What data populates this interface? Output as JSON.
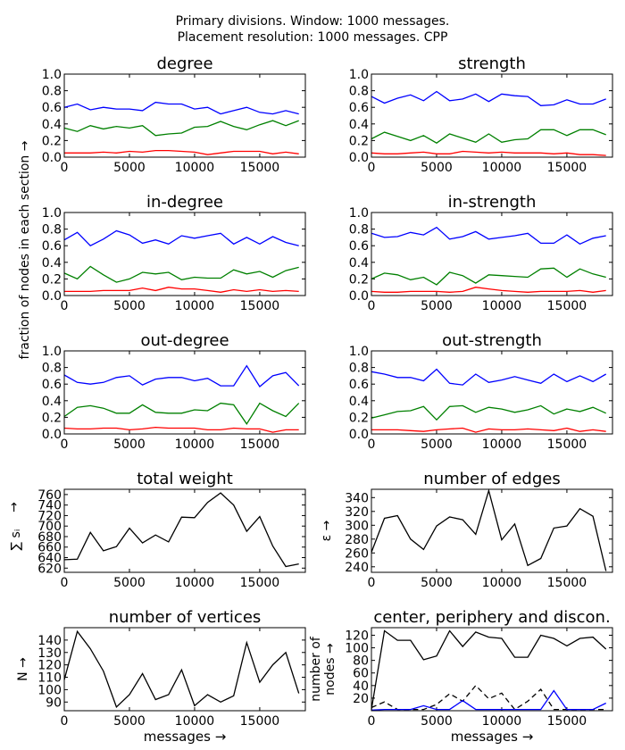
{
  "figure": {
    "suptitle_line1": "Primary divisions. Window: 1000 messages.",
    "suptitle_line2": "Placement resolution: 1000 messages. CPP",
    "fraction_ylabel": "fraction of nodes in each section  →"
  },
  "chart_data": [
    {
      "id": "degree",
      "type": "line",
      "title": "degree",
      "xlim": [
        0,
        18500
      ],
      "ylim": [
        0,
        1.0
      ],
      "xticks": [
        0,
        5000,
        10000,
        15000
      ],
      "yticks": [
        0.0,
        0.2,
        0.4,
        0.6,
        0.8,
        1.0
      ],
      "xtick_labels": [
        "0",
        "5000",
        "10000",
        "15000"
      ],
      "ytick_labels": [
        "0.0",
        "0.2",
        "0.4",
        "0.6",
        "0.8",
        "1.0"
      ],
      "x": [
        0,
        1000,
        2000,
        3000,
        4000,
        5000,
        6000,
        7000,
        8000,
        9000,
        10000,
        11000,
        12000,
        13000,
        14000,
        15000,
        16000,
        17000,
        18000
      ],
      "series": [
        {
          "color": "#0000ff",
          "values": [
            0.6,
            0.64,
            0.57,
            0.6,
            0.58,
            0.58,
            0.56,
            0.66,
            0.64,
            0.64,
            0.58,
            0.6,
            0.52,
            0.56,
            0.6,
            0.54,
            0.52,
            0.56,
            0.52
          ]
        },
        {
          "color": "#008000",
          "values": [
            0.35,
            0.31,
            0.38,
            0.34,
            0.37,
            0.35,
            0.38,
            0.26,
            0.28,
            0.29,
            0.36,
            0.37,
            0.43,
            0.37,
            0.33,
            0.39,
            0.44,
            0.38,
            0.44
          ]
        },
        {
          "color": "#ff0000",
          "values": [
            0.05,
            0.05,
            0.05,
            0.06,
            0.05,
            0.07,
            0.06,
            0.08,
            0.08,
            0.07,
            0.06,
            0.03,
            0.05,
            0.07,
            0.07,
            0.07,
            0.04,
            0.06,
            0.04
          ]
        }
      ]
    },
    {
      "id": "strength",
      "type": "line",
      "title": "strength",
      "xlim": [
        0,
        18500
      ],
      "ylim": [
        0,
        1.0
      ],
      "xticks": [
        0,
        5000,
        10000,
        15000
      ],
      "yticks": [
        0.0,
        0.2,
        0.4,
        0.6,
        0.8,
        1.0
      ],
      "xtick_labels": [
        "0",
        "5000",
        "10000",
        "15000"
      ],
      "ytick_labels": [
        "0.0",
        "0.2",
        "0.4",
        "0.6",
        "0.8",
        "1.0"
      ],
      "x": [
        0,
        1000,
        2000,
        3000,
        4000,
        5000,
        6000,
        7000,
        8000,
        9000,
        10000,
        11000,
        12000,
        13000,
        14000,
        15000,
        16000,
        17000,
        18000
      ],
      "series": [
        {
          "color": "#0000ff",
          "values": [
            0.73,
            0.65,
            0.71,
            0.75,
            0.68,
            0.79,
            0.68,
            0.7,
            0.76,
            0.67,
            0.76,
            0.74,
            0.73,
            0.62,
            0.63,
            0.69,
            0.64,
            0.64,
            0.7
          ]
        },
        {
          "color": "#008000",
          "values": [
            0.22,
            0.3,
            0.25,
            0.2,
            0.26,
            0.17,
            0.28,
            0.23,
            0.18,
            0.28,
            0.18,
            0.21,
            0.22,
            0.33,
            0.33,
            0.26,
            0.33,
            0.33,
            0.27
          ]
        },
        {
          "color": "#ff0000",
          "values": [
            0.05,
            0.04,
            0.04,
            0.05,
            0.06,
            0.04,
            0.04,
            0.07,
            0.06,
            0.05,
            0.06,
            0.05,
            0.05,
            0.05,
            0.04,
            0.05,
            0.03,
            0.03,
            0.02
          ]
        }
      ]
    },
    {
      "id": "in-degree",
      "type": "line",
      "title": "in-degree",
      "xlim": [
        0,
        18500
      ],
      "ylim": [
        0,
        1.0
      ],
      "xticks": [
        0,
        5000,
        10000,
        15000
      ],
      "yticks": [
        0.0,
        0.2,
        0.4,
        0.6,
        0.8,
        1.0
      ],
      "xtick_labels": [
        "0",
        "5000",
        "10000",
        "15000"
      ],
      "ytick_labels": [
        "0.0",
        "0.2",
        "0.4",
        "0.6",
        "0.8",
        "1.0"
      ],
      "x": [
        0,
        1000,
        2000,
        3000,
        4000,
        5000,
        6000,
        7000,
        8000,
        9000,
        10000,
        11000,
        12000,
        13000,
        14000,
        15000,
        16000,
        17000,
        18000
      ],
      "series": [
        {
          "color": "#0000ff",
          "values": [
            0.67,
            0.76,
            0.6,
            0.68,
            0.78,
            0.73,
            0.63,
            0.67,
            0.62,
            0.72,
            0.69,
            0.72,
            0.75,
            0.62,
            0.7,
            0.62,
            0.71,
            0.64,
            0.6
          ]
        },
        {
          "color": "#008000",
          "values": [
            0.27,
            0.2,
            0.35,
            0.25,
            0.16,
            0.2,
            0.28,
            0.26,
            0.28,
            0.19,
            0.22,
            0.21,
            0.21,
            0.31,
            0.26,
            0.29,
            0.22,
            0.3,
            0.34
          ]
        },
        {
          "color": "#ff0000",
          "values": [
            0.05,
            0.05,
            0.05,
            0.06,
            0.06,
            0.06,
            0.09,
            0.06,
            0.1,
            0.08,
            0.08,
            0.06,
            0.04,
            0.07,
            0.05,
            0.07,
            0.05,
            0.06,
            0.05
          ]
        }
      ]
    },
    {
      "id": "in-strength",
      "type": "line",
      "title": "in-strength",
      "xlim": [
        0,
        18500
      ],
      "ylim": [
        0,
        1.0
      ],
      "xticks": [
        0,
        5000,
        10000,
        15000
      ],
      "yticks": [
        0.0,
        0.2,
        0.4,
        0.6,
        0.8,
        1.0
      ],
      "xtick_labels": [
        "0",
        "5000",
        "10000",
        "15000"
      ],
      "ytick_labels": [
        "0.0",
        "0.2",
        "0.4",
        "0.6",
        "0.8",
        "1.0"
      ],
      "x": [
        0,
        1000,
        2000,
        3000,
        4000,
        5000,
        6000,
        7000,
        8000,
        9000,
        10000,
        11000,
        12000,
        13000,
        14000,
        15000,
        16000,
        17000,
        18000
      ],
      "series": [
        {
          "color": "#0000ff",
          "values": [
            0.75,
            0.7,
            0.71,
            0.76,
            0.73,
            0.82,
            0.68,
            0.71,
            0.77,
            0.68,
            0.7,
            0.72,
            0.75,
            0.63,
            0.63,
            0.73,
            0.62,
            0.69,
            0.72
          ]
        },
        {
          "color": "#008000",
          "values": [
            0.2,
            0.27,
            0.25,
            0.19,
            0.22,
            0.13,
            0.28,
            0.24,
            0.15,
            0.25,
            0.24,
            0.23,
            0.22,
            0.32,
            0.33,
            0.22,
            0.32,
            0.26,
            0.22
          ]
        },
        {
          "color": "#ff0000",
          "values": [
            0.05,
            0.04,
            0.04,
            0.05,
            0.05,
            0.05,
            0.04,
            0.05,
            0.1,
            0.08,
            0.06,
            0.05,
            0.04,
            0.05,
            0.05,
            0.05,
            0.06,
            0.04,
            0.06
          ]
        }
      ]
    },
    {
      "id": "out-degree",
      "type": "line",
      "title": "out-degree",
      "xlim": [
        0,
        18500
      ],
      "ylim": [
        0,
        1.0
      ],
      "xticks": [
        0,
        5000,
        10000,
        15000
      ],
      "yticks": [
        0.0,
        0.2,
        0.4,
        0.6,
        0.8,
        1.0
      ],
      "xtick_labels": [
        "0",
        "5000",
        "10000",
        "15000"
      ],
      "ytick_labels": [
        "0.0",
        "0.2",
        "0.4",
        "0.6",
        "0.8",
        "1.0"
      ],
      "x": [
        0,
        1000,
        2000,
        3000,
        4000,
        5000,
        6000,
        7000,
        8000,
        9000,
        10000,
        11000,
        12000,
        13000,
        14000,
        15000,
        16000,
        17000,
        18000
      ],
      "series": [
        {
          "color": "#0000ff",
          "values": [
            0.71,
            0.62,
            0.6,
            0.62,
            0.68,
            0.7,
            0.59,
            0.66,
            0.68,
            0.68,
            0.64,
            0.67,
            0.58,
            0.58,
            0.82,
            0.57,
            0.7,
            0.74,
            0.58
          ]
        },
        {
          "color": "#008000",
          "values": [
            0.21,
            0.32,
            0.34,
            0.31,
            0.25,
            0.25,
            0.35,
            0.26,
            0.25,
            0.25,
            0.29,
            0.28,
            0.37,
            0.35,
            0.12,
            0.37,
            0.28,
            0.21,
            0.37
          ]
        },
        {
          "color": "#ff0000",
          "values": [
            0.07,
            0.06,
            0.06,
            0.07,
            0.07,
            0.05,
            0.06,
            0.08,
            0.07,
            0.07,
            0.07,
            0.05,
            0.05,
            0.07,
            0.06,
            0.06,
            0.02,
            0.05,
            0.05
          ]
        }
      ]
    },
    {
      "id": "out-strength",
      "type": "line",
      "title": "out-strength",
      "xlim": [
        0,
        18500
      ],
      "ylim": [
        0,
        1.0
      ],
      "xticks": [
        0,
        5000,
        10000,
        15000
      ],
      "yticks": [
        0.0,
        0.2,
        0.4,
        0.6,
        0.8,
        1.0
      ],
      "xtick_labels": [
        "0",
        "5000",
        "10000",
        "15000"
      ],
      "ytick_labels": [
        "0.0",
        "0.2",
        "0.4",
        "0.6",
        "0.8",
        "1.0"
      ],
      "x": [
        0,
        1000,
        2000,
        3000,
        4000,
        5000,
        6000,
        7000,
        8000,
        9000,
        10000,
        11000,
        12000,
        13000,
        14000,
        15000,
        16000,
        17000,
        18000
      ],
      "series": [
        {
          "color": "#0000ff",
          "values": [
            0.75,
            0.72,
            0.68,
            0.68,
            0.64,
            0.78,
            0.61,
            0.59,
            0.72,
            0.62,
            0.65,
            0.69,
            0.65,
            0.61,
            0.72,
            0.63,
            0.7,
            0.63,
            0.72
          ]
        },
        {
          "color": "#008000",
          "values": [
            0.19,
            0.23,
            0.27,
            0.28,
            0.33,
            0.17,
            0.33,
            0.34,
            0.26,
            0.32,
            0.3,
            0.26,
            0.29,
            0.34,
            0.24,
            0.3,
            0.27,
            0.32,
            0.25
          ]
        },
        {
          "color": "#ff0000",
          "values": [
            0.05,
            0.05,
            0.05,
            0.04,
            0.03,
            0.05,
            0.06,
            0.07,
            0.02,
            0.06,
            0.05,
            0.05,
            0.06,
            0.05,
            0.04,
            0.07,
            0.03,
            0.05,
            0.03
          ]
        }
      ]
    },
    {
      "id": "total-weight",
      "type": "line",
      "title": "total weight",
      "ylabel": "∑ sᵢ",
      "ylabel_arrow": "→",
      "xlim": [
        0,
        18500
      ],
      "ylim": [
        612,
        770
      ],
      "xticks": [
        0,
        5000,
        10000,
        15000
      ],
      "yticks": [
        620,
        640,
        660,
        680,
        700,
        720,
        740,
        760
      ],
      "xtick_labels": [
        "0",
        "5000",
        "10000",
        "15000"
      ],
      "ytick_labels": [
        "620",
        "640",
        "660",
        "680",
        "700",
        "720",
        "740",
        "760"
      ],
      "x": [
        0,
        1000,
        2000,
        3000,
        4000,
        5000,
        6000,
        7000,
        8000,
        9000,
        10000,
        11000,
        12000,
        13000,
        14000,
        15000,
        16000,
        17000,
        18000
      ],
      "series": [
        {
          "color": "#000000",
          "values": [
            636,
            637,
            688,
            653,
            661,
            696,
            668,
            683,
            670,
            717,
            716,
            745,
            763,
            740,
            690,
            718,
            662,
            623,
            628
          ]
        }
      ]
    },
    {
      "id": "number-of-edges",
      "type": "line",
      "title": "number of edges",
      "ylabel": "ε →",
      "xlim": [
        0,
        18500
      ],
      "ylim": [
        232,
        352
      ],
      "xticks": [
        0,
        5000,
        10000,
        15000
      ],
      "yticks": [
        240,
        260,
        280,
        300,
        320,
        340
      ],
      "xtick_labels": [
        "0",
        "5000",
        "10000",
        "15000"
      ],
      "ytick_labels": [
        "240",
        "260",
        "280",
        "300",
        "320",
        "340"
      ],
      "x": [
        0,
        1000,
        2000,
        3000,
        4000,
        5000,
        6000,
        7000,
        8000,
        9000,
        10000,
        11000,
        12000,
        13000,
        14000,
        15000,
        16000,
        17000,
        18000
      ],
      "series": [
        {
          "color": "#000000",
          "values": [
            261,
            310,
            314,
            280,
            265,
            299,
            312,
            308,
            287,
            350,
            279,
            302,
            242,
            252,
            296,
            299,
            324,
            313,
            234
          ]
        }
      ]
    },
    {
      "id": "number-of-vertices",
      "type": "line",
      "title": "number of vertices",
      "ylabel": "N  →",
      "xlim": [
        0,
        18500
      ],
      "ylim": [
        83,
        150
      ],
      "xticks": [
        0,
        5000,
        10000,
        15000
      ],
      "yticks": [
        90,
        100,
        110,
        120,
        130,
        140
      ],
      "xtick_labels": [
        "0",
        "5000",
        "10000",
        "15000"
      ],
      "ytick_labels": [
        "90",
        "100",
        "110",
        "120",
        "130",
        "140"
      ],
      "xlabel": "messages  →",
      "x": [
        0,
        1000,
        2000,
        3000,
        4000,
        5000,
        6000,
        7000,
        8000,
        9000,
        10000,
        11000,
        12000,
        13000,
        14000,
        15000,
        16000,
        17000,
        18000
      ],
      "series": [
        {
          "color": "#000000",
          "values": [
            108,
            147,
            133,
            115,
            86,
            96,
            113,
            92,
            96,
            116,
            87,
            96,
            90,
            95,
            138,
            106,
            120,
            130,
            97
          ]
        }
      ]
    },
    {
      "id": "center-periphery",
      "type": "line",
      "title": "center, periphery and discon.",
      "ylabel_line1": "number of",
      "ylabel_line2": "nodes  →",
      "xlim": [
        0,
        18500
      ],
      "ylim": [
        0,
        132
      ],
      "xticks": [
        0,
        5000,
        10000,
        15000
      ],
      "yticks": [
        20,
        40,
        60,
        80,
        100,
        120
      ],
      "xtick_labels": [
        "0",
        "5000",
        "10000",
        "15000"
      ],
      "ytick_labels": [
        "20",
        "40",
        "60",
        "80",
        "100",
        "120"
      ],
      "xlabel": "messages  →",
      "x": [
        0,
        1000,
        2000,
        3000,
        4000,
        5000,
        6000,
        7000,
        8000,
        9000,
        10000,
        11000,
        12000,
        13000,
        14000,
        15000,
        16000,
        17000,
        18000
      ],
      "series": [
        {
          "color": "#000000",
          "dash": "",
          "values": [
            2,
            127,
            112,
            112,
            81,
            87,
            127,
            102,
            125,
            117,
            115,
            85,
            85,
            120,
            115,
            103,
            115,
            117,
            98
          ]
        },
        {
          "color": "#000000",
          "dash": "6,4",
          "values": [
            5,
            14,
            2,
            2,
            2,
            10,
            27,
            15,
            40,
            19,
            28,
            2,
            15,
            34,
            2,
            2,
            2,
            2,
            2
          ]
        },
        {
          "color": "#0000ff",
          "dash": "",
          "values": [
            1,
            2,
            2,
            2,
            8,
            2,
            2,
            16,
            2,
            2,
            2,
            2,
            2,
            2,
            32,
            2,
            2,
            2,
            12
          ]
        }
      ]
    }
  ]
}
